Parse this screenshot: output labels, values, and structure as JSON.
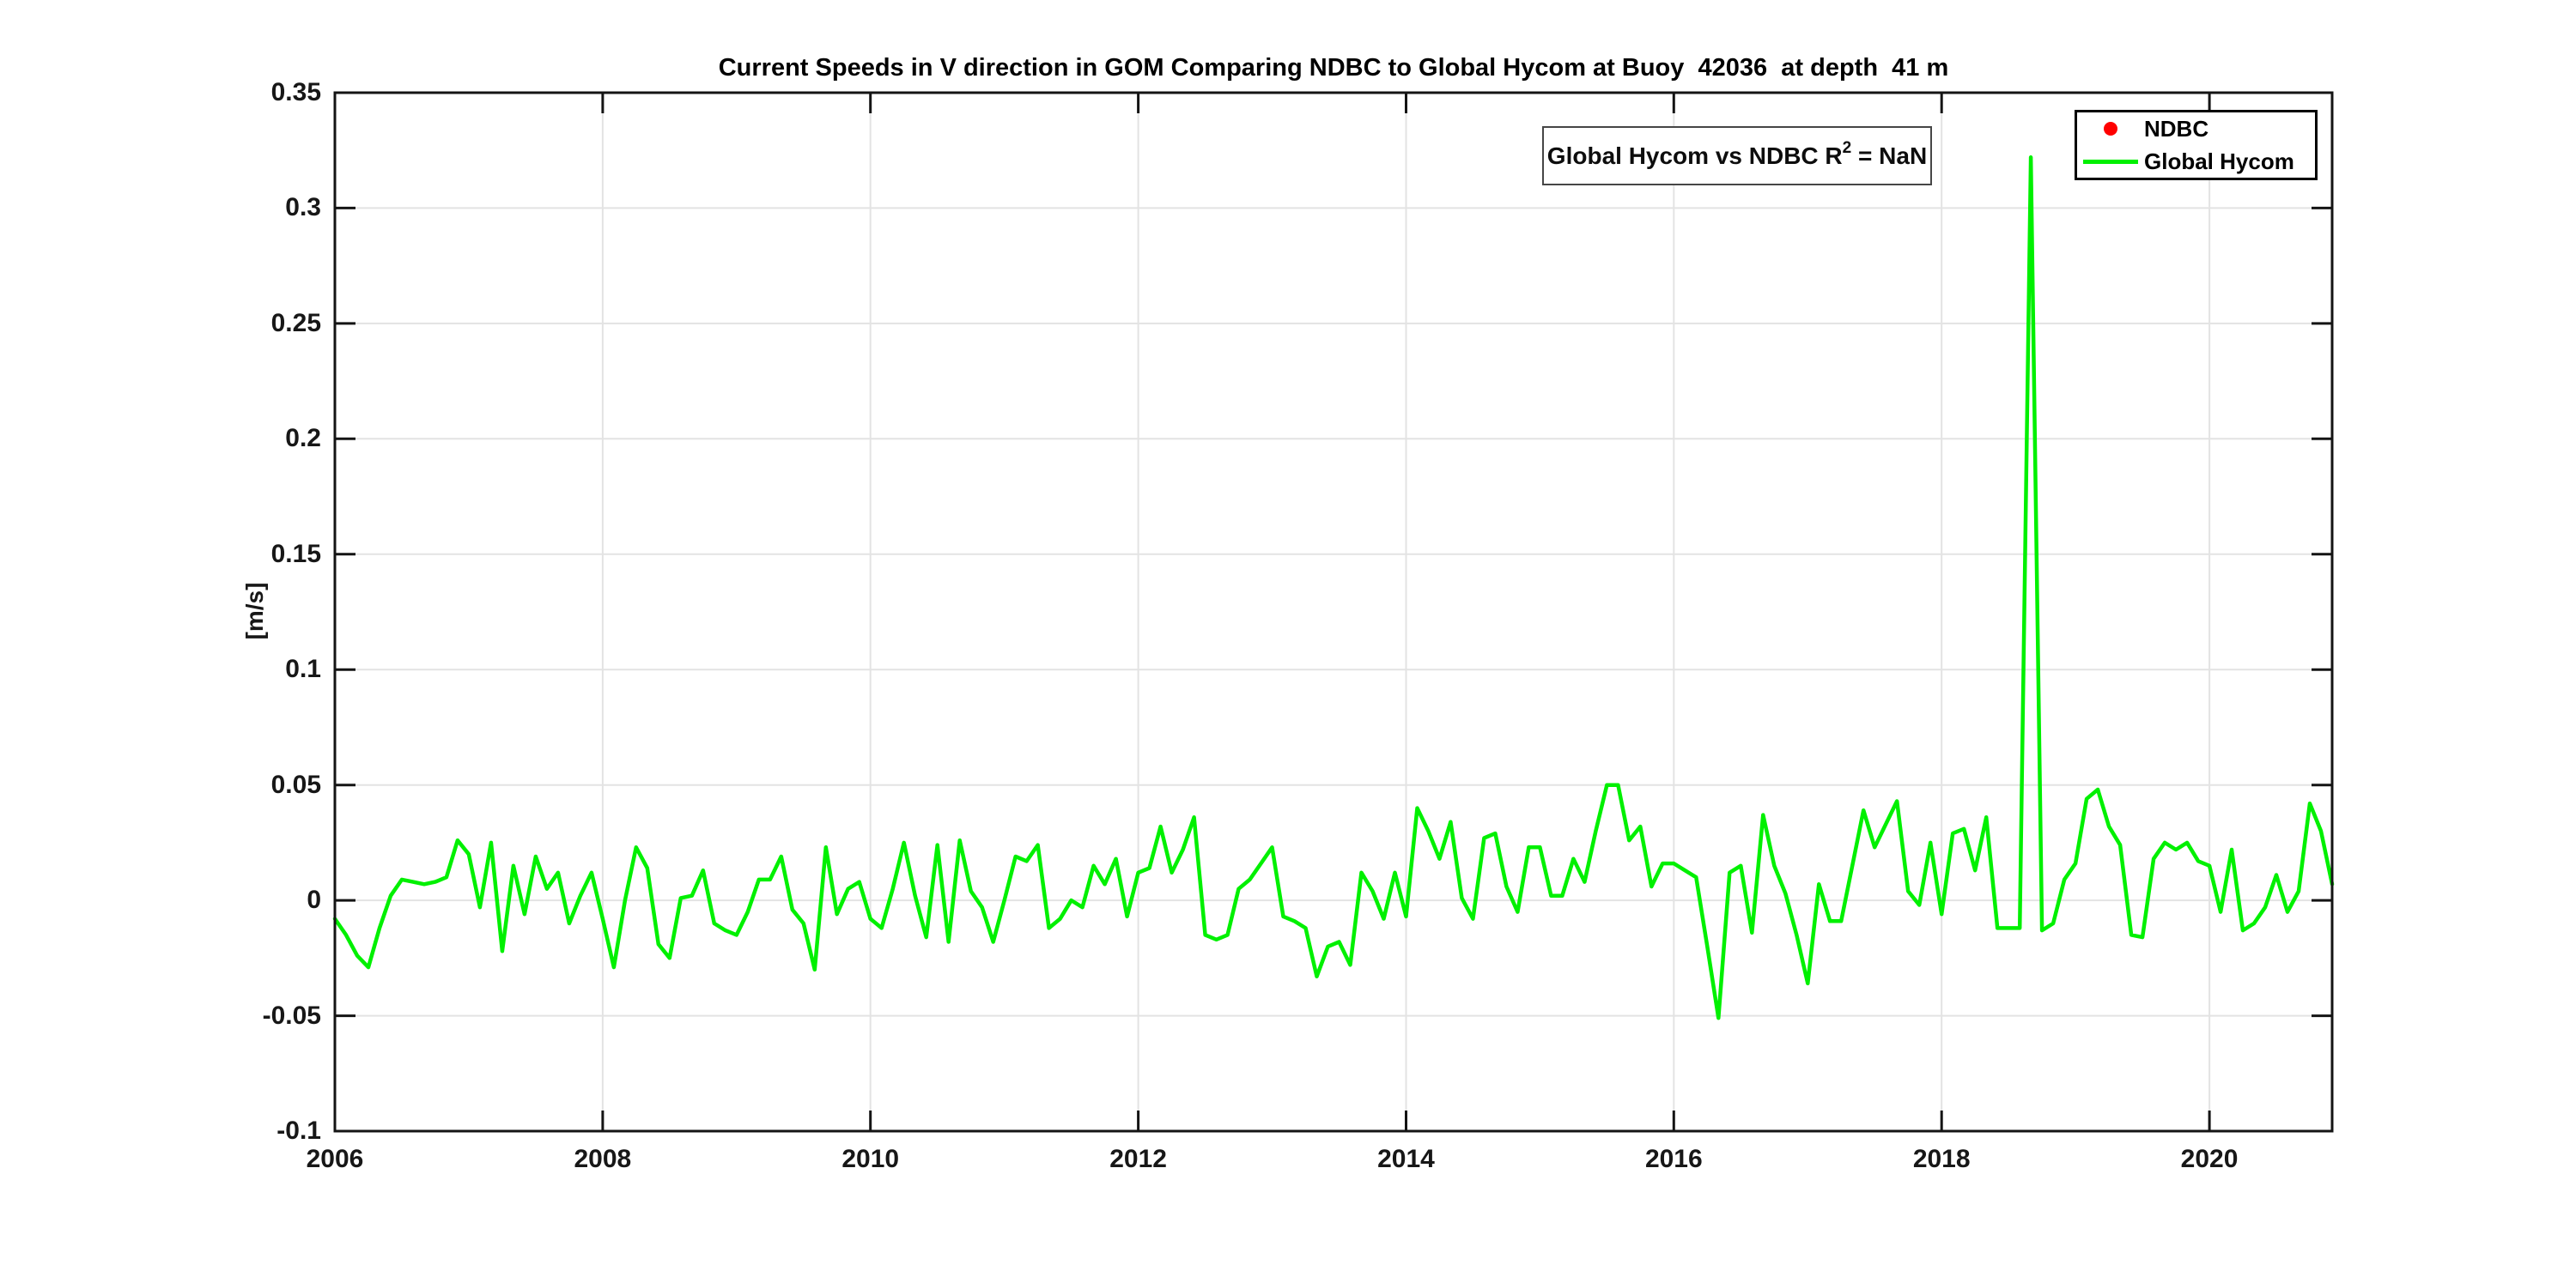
{
  "title": "Current Speeds in V direction in GOM Comparing NDBC to Global Hycom at Buoy  42036  at depth  41 m",
  "annotation": {
    "prefix": "Global Hycom vs NDBC R",
    "sup": "2",
    "suffix": " = NaN"
  },
  "legend": {
    "items": [
      {
        "label": "NDBC",
        "marker": "red-dot",
        "color": "#ff0000"
      },
      {
        "label": "Global Hycom",
        "marker": "green-line",
        "color": "#00f000"
      }
    ]
  },
  "colors": {
    "ndbc_red": "#ff0000",
    "hycom_green": "#00f000",
    "axis": "#141414",
    "grid": "#e3e3e3",
    "text": "#171717"
  },
  "chart_data": {
    "type": "line",
    "title": "Current Speeds in V direction in GOM Comparing NDBC to Global Hycom at Buoy  42036  at depth  41 m",
    "xlabel": "",
    "ylabel": "[m/s]",
    "xlim": [
      2006,
      2020.9167
    ],
    "ylim": [
      -0.1,
      0.35
    ],
    "grid": true,
    "legend_position": "top-right-inside",
    "x_tick_values": [
      2006,
      2008,
      2010,
      2012,
      2014,
      2016,
      2018,
      2020
    ],
    "x_tick_labels": [
      "2006",
      "2008",
      "2010",
      "2012",
      "2014",
      "2016",
      "2018",
      "2020"
    ],
    "y_tick_values": [
      0.35,
      0.3,
      0.25,
      0.2,
      0.15,
      0.1,
      0.05,
      0,
      -0.05,
      -0.1
    ],
    "y_tick_labels": [
      "0.35",
      "0.3",
      "0.25",
      "0.2",
      "0.15",
      "0.1",
      "0.05",
      "0",
      "-0.05",
      "-0.1"
    ],
    "series": [
      {
        "name": "NDBC",
        "color": "#ff0000",
        "style": "scatter-dot",
        "values": []
      },
      {
        "name": "Global Hycom",
        "color": "#00f000",
        "style": "line",
        "x_start_year": 2006,
        "x_step_months": 1,
        "values": [
          -0.008,
          -0.015,
          -0.024,
          -0.029,
          -0.012,
          0.002,
          0.009,
          0.008,
          0.007,
          0.008,
          0.01,
          0.026,
          0.02,
          -0.003,
          0.025,
          -0.022,
          0.015,
          -0.006,
          0.019,
          0.005,
          0.012,
          -0.01,
          0.002,
          0.012,
          -0.008,
          -0.029,
          0.0,
          0.023,
          0.014,
          -0.019,
          -0.025,
          0.001,
          0.002,
          0.013,
          -0.01,
          -0.013,
          -0.015,
          -0.005,
          0.009,
          0.009,
          0.019,
          -0.004,
          -0.01,
          -0.03,
          0.023,
          -0.006,
          0.005,
          0.008,
          -0.008,
          -0.012,
          0.005,
          0.025,
          0.002,
          -0.016,
          0.024,
          -0.018,
          0.026,
          0.004,
          -0.003,
          -0.018,
          0.0,
          0.019,
          0.017,
          0.024,
          -0.012,
          -0.008,
          0.0,
          -0.003,
          0.015,
          0.007,
          0.018,
          -0.007,
          0.012,
          0.014,
          0.032,
          0.012,
          0.022,
          0.036,
          -0.015,
          -0.017,
          -0.015,
          0.005,
          0.009,
          0.016,
          0.023,
          -0.007,
          -0.009,
          -0.012,
          -0.033,
          -0.02,
          -0.018,
          -0.028,
          0.012,
          0.004,
          -0.008,
          0.012,
          -0.007,
          0.04,
          0.03,
          0.018,
          0.034,
          0.001,
          -0.008,
          0.027,
          0.029,
          0.006,
          -0.005,
          0.023,
          0.023,
          0.002,
          0.002,
          0.018,
          0.008,
          0.03,
          0.05,
          0.05,
          0.026,
          0.032,
          0.006,
          0.016,
          0.016,
          0.013,
          0.01,
          -0.02,
          -0.051,
          0.012,
          0.015,
          -0.014,
          0.037,
          0.015,
          0.003,
          -0.015,
          -0.036,
          0.007,
          -0.009,
          -0.009,
          0.015,
          0.039,
          0.023,
          0.033,
          0.043,
          0.004,
          -0.002,
          0.025,
          -0.006,
          0.029,
          0.031,
          0.013,
          0.036,
          -0.012,
          -0.012,
          -0.012,
          0.322,
          -0.013,
          -0.01,
          0.009,
          0.016,
          0.044,
          0.048,
          0.032,
          0.024,
          -0.015,
          -0.016,
          0.018,
          0.025,
          0.022,
          0.025,
          0.017,
          0.015,
          -0.005,
          0.022,
          -0.013,
          -0.01,
          -0.003,
          0.011,
          -0.005,
          0.004,
          0.042,
          0.03,
          0.007
        ]
      }
    ]
  }
}
